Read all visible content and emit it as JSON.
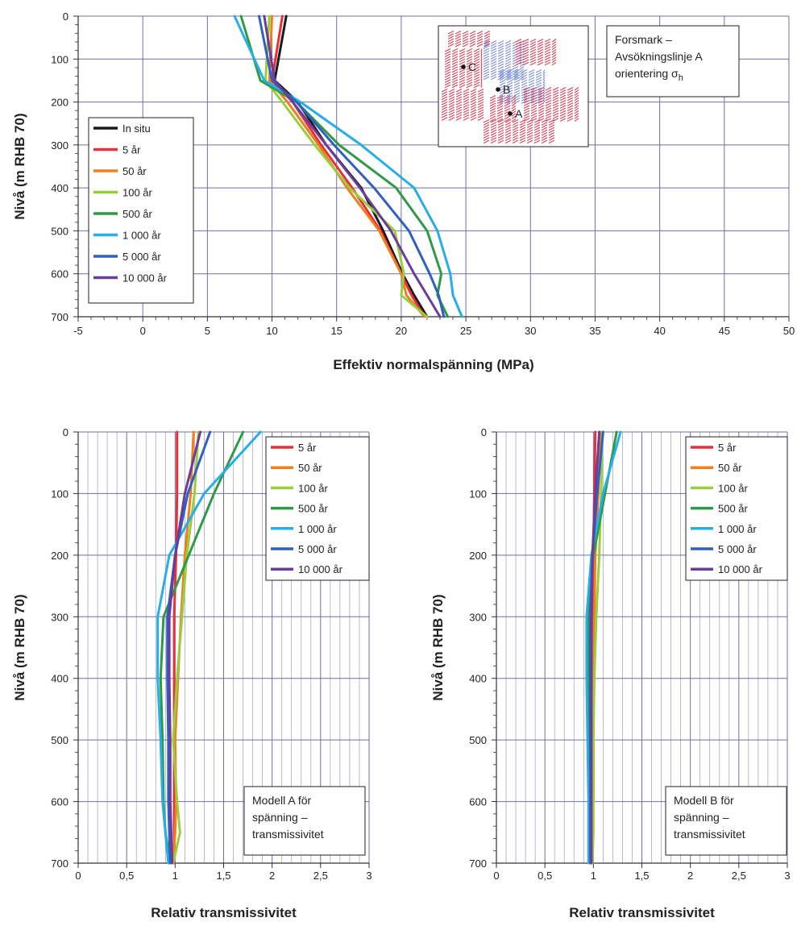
{
  "chart_data": [
    {
      "type": "line",
      "orientation": "profile",
      "xlabel": "Effektiv normalspänning (MPa)",
      "ylabel": "Nivå (m RHB 70)",
      "xlim": [
        -5,
        50
      ],
      "ylim": [
        700,
        0
      ],
      "xticks": [
        "-5",
        "0",
        "5",
        "10",
        "15",
        "20",
        "25",
        "30",
        "35",
        "40",
        "45",
        "50"
      ],
      "yticks": [
        "0",
        "100",
        "200",
        "300",
        "400",
        "500",
        "600",
        "700"
      ],
      "grid": true,
      "legend_position": "left",
      "annotation": [
        "Forsmark –",
        "Avsökningslinje A",
        "orientering σh"
      ],
      "inset_labels": [
        "C",
        "B",
        "A"
      ],
      "depths": [
        0,
        150,
        200,
        300,
        400,
        500,
        600,
        650,
        700
      ],
      "series": [
        {
          "name": "In situ",
          "color": "#1a1a1a",
          "values": [
            11.1,
            10.2,
            12.0,
            14.2,
            16.9,
            18.6,
            20.1,
            21.0,
            22.0
          ]
        },
        {
          "name": "5 år",
          "color": "#e8303a",
          "values": [
            10.8,
            10.0,
            11.6,
            13.8,
            16.2,
            18.4,
            20.0,
            20.8,
            21.8
          ]
        },
        {
          "name": "50 år",
          "color": "#f07d1e",
          "values": [
            10.0,
            9.8,
            11.2,
            13.6,
            15.8,
            18.3,
            20.0,
            20.4,
            21.8
          ]
        },
        {
          "name": "100 år",
          "color": "#9acd3c",
          "values": [
            9.8,
            9.5,
            10.8,
            13.3,
            16.0,
            19.5,
            20.2,
            20.0,
            22.0
          ]
        },
        {
          "name": "500 år",
          "color": "#2e9a45",
          "values": [
            7.6,
            9.1,
            11.9,
            15.2,
            19.6,
            22.0,
            23.1,
            22.8,
            23.6
          ]
        },
        {
          "name": "1 000 år",
          "color": "#27aee6",
          "values": [
            7.1,
            9.4,
            12.2,
            16.9,
            21.0,
            22.8,
            23.8,
            24.0,
            24.7
          ]
        },
        {
          "name": "5 000 år",
          "color": "#2f5fbf",
          "values": [
            9.0,
            10.0,
            11.9,
            14.8,
            17.9,
            20.6,
            22.2,
            22.9,
            23.3
          ]
        },
        {
          "name": "10 000 år",
          "color": "#6a3d9a",
          "values": [
            9.4,
            10.2,
            11.6,
            14.2,
            16.8,
            19.2,
            21.0,
            22.0,
            23.0
          ]
        }
      ]
    },
    {
      "type": "line",
      "orientation": "profile",
      "xlabel": "Relativ transmissivitet",
      "ylabel": "Nivå (m RHB 70)",
      "xlim": [
        0,
        3
      ],
      "ylim": [
        700,
        0
      ],
      "xticks": [
        "0",
        "0,5",
        "1",
        "1,5",
        "2",
        "2,5",
        "3"
      ],
      "yticks": [
        "0",
        "100",
        "200",
        "300",
        "400",
        "500",
        "600",
        "700"
      ],
      "grid": true,
      "legend_position": "top-right",
      "annotation": [
        "Modell A för",
        "spänning –",
        "transmissivitet"
      ],
      "depths": [
        0,
        100,
        200,
        300,
        400,
        500,
        600,
        650,
        700
      ],
      "series": [
        {
          "name": "5 år",
          "color": "#e8303a",
          "values": [
            1.02,
            1.02,
            1.01,
            0.99,
            0.99,
            0.99,
            0.99,
            0.99,
            0.99
          ]
        },
        {
          "name": "50 år",
          "color": "#f07d1e",
          "values": [
            1.19,
            1.16,
            1.1,
            1.06,
            1.03,
            1.0,
            1.01,
            1.0,
            0.98
          ]
        },
        {
          "name": "100 år",
          "color": "#9acd3c",
          "values": [
            1.24,
            1.2,
            1.12,
            1.07,
            1.02,
            0.98,
            1.02,
            1.05,
            0.98
          ]
        },
        {
          "name": "500 år",
          "color": "#2e9a45",
          "values": [
            1.7,
            1.4,
            1.14,
            0.88,
            0.85,
            0.87,
            0.88,
            0.9,
            0.95
          ]
        },
        {
          "name": "1 000 år",
          "color": "#27aee6",
          "values": [
            1.88,
            1.3,
            0.94,
            0.82,
            0.82,
            0.85,
            0.87,
            0.9,
            0.93
          ]
        },
        {
          "name": "5 000 år",
          "color": "#2f5fbf",
          "values": [
            1.36,
            1.13,
            1.0,
            0.92,
            0.92,
            0.93,
            0.93,
            0.94,
            0.95
          ]
        },
        {
          "name": "10 000 år",
          "color": "#6a3d9a",
          "values": [
            1.26,
            1.1,
            1.0,
            0.94,
            0.94,
            0.95,
            0.95,
            0.96,
            0.97
          ]
        }
      ]
    },
    {
      "type": "line",
      "orientation": "profile",
      "xlabel": "Relativ transmissivitet",
      "ylabel": "Nivå (m RHB 70)",
      "xlim": [
        0,
        3
      ],
      "ylim": [
        700,
        0
      ],
      "xticks": [
        "0",
        "0,5",
        "1",
        "1,5",
        "2",
        "2,5",
        "3"
      ],
      "yticks": [
        "0",
        "100",
        "200",
        "300",
        "400",
        "500",
        "600",
        "700"
      ],
      "grid": true,
      "legend_position": "top-right",
      "annotation": [
        "Modell B för",
        "spänning –",
        "transmissivitet"
      ],
      "depths": [
        0,
        100,
        200,
        300,
        400,
        500,
        600,
        650,
        700
      ],
      "series": [
        {
          "name": "5 år",
          "color": "#e8303a",
          "values": [
            1.02,
            1.01,
            1.0,
            1.0,
            1.0,
            0.99,
            0.99,
            0.99,
            0.99
          ]
        },
        {
          "name": "50 år",
          "color": "#f07d1e",
          "values": [
            1.07,
            1.05,
            1.02,
            1.01,
            1.0,
            1.0,
            1.0,
            0.99,
            0.99
          ]
        },
        {
          "name": "100 år",
          "color": "#9acd3c",
          "values": [
            1.09,
            1.08,
            1.06,
            1.03,
            1.01,
            1.0,
            1.0,
            1.0,
            0.99
          ]
        },
        {
          "name": "500 år",
          "color": "#2e9a45",
          "values": [
            1.24,
            1.12,
            1.0,
            0.95,
            0.95,
            0.95,
            0.96,
            0.97,
            0.97
          ]
        },
        {
          "name": "1 000 år",
          "color": "#27aee6",
          "values": [
            1.28,
            1.1,
            0.98,
            0.93,
            0.93,
            0.94,
            0.95,
            0.95,
            0.95
          ]
        },
        {
          "name": "5 000 år",
          "color": "#2f5fbf",
          "values": [
            1.1,
            1.04,
            0.99,
            0.97,
            0.97,
            0.97,
            0.97,
            0.97,
            0.97
          ]
        },
        {
          "name": "10 000 år",
          "color": "#6a3d9a",
          "values": [
            1.06,
            1.02,
            0.99,
            0.98,
            0.98,
            0.98,
            0.98,
            0.98,
            0.98
          ]
        }
      ]
    }
  ]
}
